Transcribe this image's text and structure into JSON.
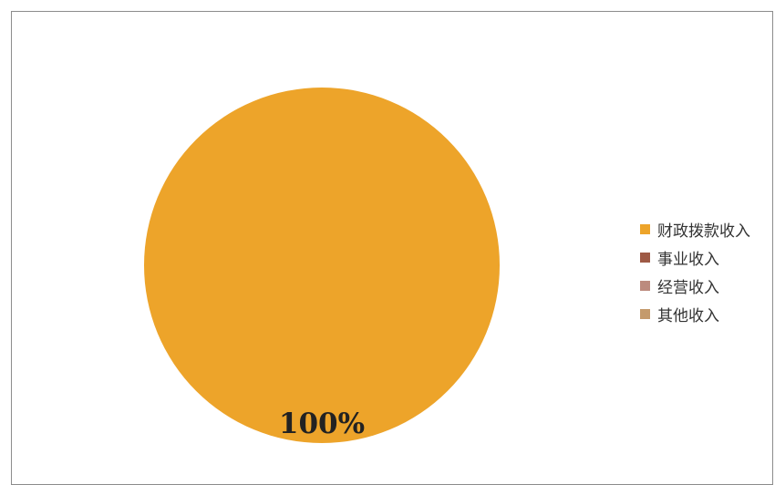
{
  "chart_data": {
    "type": "pie",
    "categories": [
      "财政拨款收入",
      "事业收入",
      "经营收入",
      "其他收入"
    ],
    "values": [
      100,
      0,
      0,
      0
    ],
    "data_labels": [
      "100%"
    ],
    "colors": [
      "#eda42a",
      "#9e5a45",
      "#bc8b7e",
      "#c49a6c"
    ],
    "legend_position": "right",
    "title": ""
  }
}
